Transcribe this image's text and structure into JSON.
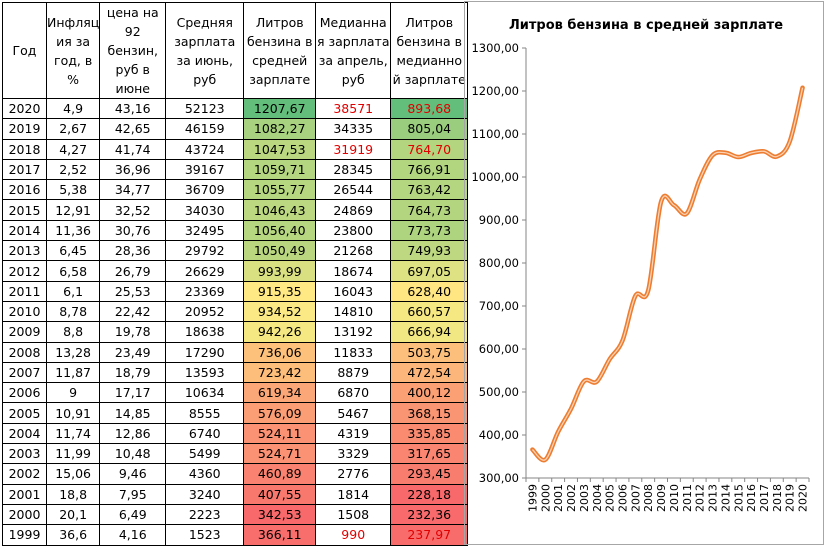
{
  "table": {
    "headers": [
      "Год",
      "Инфляц ия за год, в %",
      "цена на 92 бензин, руб в июне",
      "Средняя зарплата за июнь, руб",
      "Литров бензина в средней зарплате",
      "Медианна я зарплата за апрель, руб",
      "Литров бензина в медианно й зарплате"
    ],
    "rows": [
      [
        "2020",
        "4,9",
        "43,16",
        "52123",
        "1207,67",
        "38571",
        "893,68"
      ],
      [
        "2019",
        "2,67",
        "42,65",
        "46159",
        "1082,27",
        "34335",
        "805,04"
      ],
      [
        "2018",
        "4,27",
        "41,74",
        "43724",
        "1047,53",
        "31919",
        "764,70"
      ],
      [
        "2017",
        "2,52",
        "36,96",
        "39167",
        "1059,71",
        "28345",
        "766,91"
      ],
      [
        "2016",
        "5,38",
        "34,77",
        "36709",
        "1055,77",
        "26544",
        "763,42"
      ],
      [
        "2015",
        "12,91",
        "32,52",
        "34030",
        "1046,43",
        "24869",
        "764,73"
      ],
      [
        "2014",
        "11,36",
        "30,76",
        "32495",
        "1056,40",
        "23800",
        "773,73"
      ],
      [
        "2013",
        "6,45",
        "28,36",
        "29792",
        "1050,49",
        "21268",
        "749,93"
      ],
      [
        "2012",
        "6,58",
        "26,79",
        "26629",
        "993,99",
        "18674",
        "697,05"
      ],
      [
        "2011",
        "6,1",
        "25,53",
        "23369",
        "915,35",
        "16043",
        "628,40"
      ],
      [
        "2010",
        "8,78",
        "22,42",
        "20952",
        "934,52",
        "14810",
        "660,57"
      ],
      [
        "2009",
        "8,8",
        "19,78",
        "18638",
        "942,26",
        "13192",
        "666,94"
      ],
      [
        "2008",
        "13,28",
        "23,49",
        "17290",
        "736,06",
        "11833",
        "503,75"
      ],
      [
        "2007",
        "11,87",
        "18,79",
        "13593",
        "723,42",
        "8879",
        "472,54"
      ],
      [
        "2006",
        "9",
        "17,17",
        "10634",
        "619,34",
        "6870",
        "400,12"
      ],
      [
        "2005",
        "10,91",
        "14,85",
        "8555",
        "576,09",
        "5467",
        "368,15"
      ],
      [
        "2004",
        "11,74",
        "12,86",
        "6740",
        "524,11",
        "4319",
        "335,85"
      ],
      [
        "2003",
        "11,99",
        "10,48",
        "5499",
        "524,71",
        "3329",
        "317,65"
      ],
      [
        "2002",
        "15,06",
        "9,46",
        "4360",
        "460,89",
        "2776",
        "293,45"
      ],
      [
        "2001",
        "18,8",
        "7,95",
        "3240",
        "407,55",
        "1814",
        "228,18"
      ],
      [
        "2000",
        "20,1",
        "6,49",
        "2223",
        "342,53",
        "1508",
        "232,36"
      ],
      [
        "1999",
        "36,6",
        "4,16",
        "1523",
        "366,11",
        "990",
        "237,97"
      ]
    ],
    "red_text_cells": [
      [
        0,
        5
      ],
      [
        0,
        6
      ],
      [
        2,
        5
      ],
      [
        2,
        6
      ],
      [
        21,
        5
      ],
      [
        21,
        6
      ]
    ],
    "scale_colors": {
      "low": "#f8696b",
      "mid": "#ffeb84",
      "high": "#63be7b"
    }
  },
  "chart_data": {
    "type": "line",
    "title": "Литров бензина в средней зарплате",
    "categories": [
      "1999",
      "2000",
      "2001",
      "2002",
      "2003",
      "2004",
      "2005",
      "2006",
      "2007",
      "2008",
      "2009",
      "2010",
      "2011",
      "2012",
      "2013",
      "2014",
      "2015",
      "2016",
      "2017",
      "2018",
      "2019",
      "2020"
    ],
    "values": [
      366.11,
      342.53,
      407.55,
      460.89,
      524.71,
      524.11,
      576.09,
      619.34,
      723.42,
      736.06,
      942.26,
      934.52,
      915.35,
      993.99,
      1050.49,
      1056.4,
      1046.43,
      1055.77,
      1059.71,
      1047.53,
      1082.27,
      1207.67
    ],
    "ylim": [
      300,
      1300
    ],
    "yticks": [
      "300,00",
      "400,00",
      "500,00",
      "600,00",
      "700,00",
      "800,00",
      "900,00",
      "1000,00",
      "1100,00",
      "1200,00",
      "1300,00"
    ],
    "line_color": "#ed7d31",
    "grid": false,
    "legend": "none"
  }
}
